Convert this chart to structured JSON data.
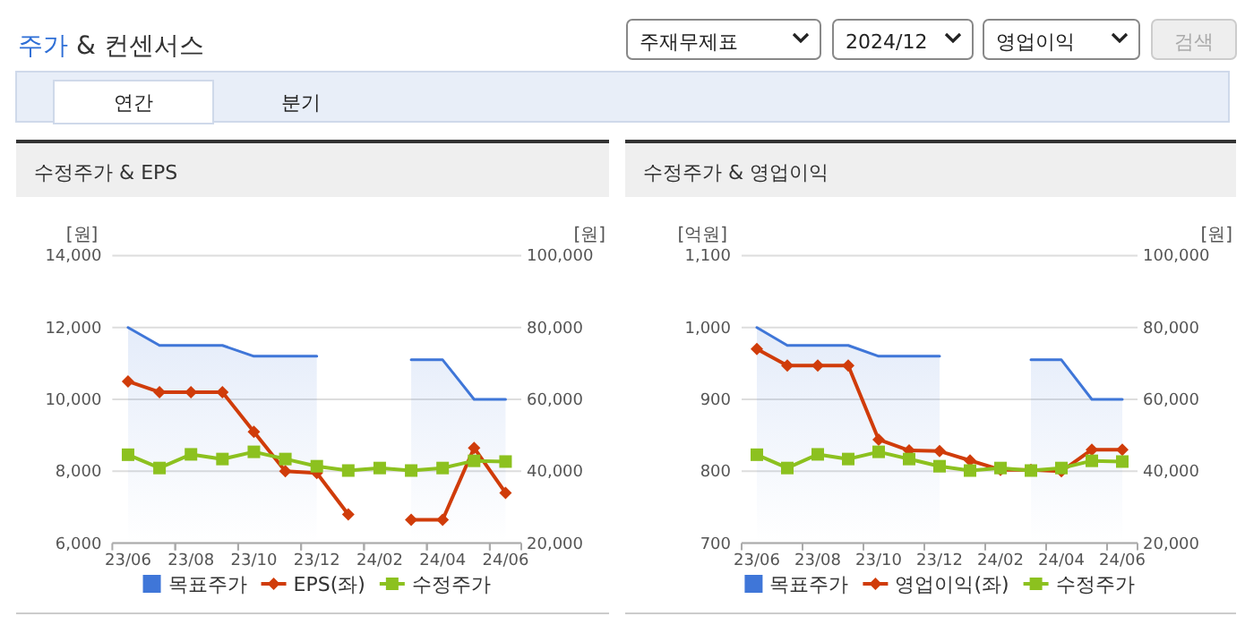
{
  "chart_data": [
    {
      "type": "other",
      "title": "주가 & 컨센서스",
      "annotations": [
        "주재무제표",
        "2024/12",
        "영업이익",
        "검색",
        "연간",
        "분기"
      ]
    },
    {
      "type": "line",
      "title": "수정주가 & EPS",
      "categories": [
        "23/06",
        null,
        "23/08",
        null,
        "23/10",
        null,
        "23/12",
        null,
        "24/02",
        null,
        "24/04",
        null,
        "24/06"
      ],
      "ylabel": "[원]",
      "y2label": "[원]",
      "ylim": [
        6000,
        14000
      ],
      "yticks": [
        {
          "value": 6000,
          "label": "6,000"
        },
        {
          "value": 8000,
          "label": "8,000"
        },
        {
          "value": 10000,
          "label": "10,000"
        },
        {
          "value": 12000,
          "label": "12,000"
        },
        {
          "value": 14000,
          "label": "14,000"
        }
      ],
      "y2lim": [
        20000,
        100000
      ],
      "y2ticks": [
        {
          "value": 20000,
          "label": "20,000"
        },
        {
          "value": 40000,
          "label": "40,000"
        },
        {
          "value": 60000,
          "label": "60,000"
        },
        {
          "value": 80000,
          "label": "80,000"
        },
        {
          "value": 100000,
          "label": "100,000"
        }
      ],
      "grid": "y",
      "legend": "bottom",
      "series": [
        {
          "name": "목표주가",
          "type": "area",
          "axis": "y2",
          "color": "#3f76d8",
          "values": [
            80000,
            75000,
            75000,
            75000,
            72000,
            72000,
            72000,
            null,
            null,
            71000,
            71000,
            60000,
            60000
          ]
        },
        {
          "name": "EPS(좌)",
          "type": "line",
          "marker": "diamond",
          "color": "#d03c0a",
          "values": [
            10500,
            10200,
            10200,
            10200,
            9100,
            8000,
            7950,
            6800,
            null,
            6650,
            6650,
            8650,
            7400
          ]
        },
        {
          "name": "수정주가",
          "type": "line",
          "marker": "square",
          "axis": "y2",
          "color": "#8cc11f",
          "values": [
            44600,
            40900,
            44700,
            43400,
            45400,
            43400,
            41400,
            40200,
            40900,
            40200,
            40900,
            42900,
            42700
          ]
        }
      ]
    },
    {
      "type": "line",
      "title": "수정주가 & 영업이익",
      "categories": [
        "23/06",
        null,
        "23/08",
        null,
        "23/10",
        null,
        "23/12",
        null,
        "24/02",
        null,
        "24/04",
        null,
        "24/06"
      ],
      "ylabel": "[억원]",
      "y2label": "[원]",
      "ylim": [
        700,
        1100
      ],
      "yticks": [
        700,
        800,
        900,
        {
          "value": 1000,
          "label": "1,000"
        },
        {
          "value": 1100,
          "label": "1,100"
        }
      ],
      "y2lim": [
        20000,
        100000
      ],
      "y2ticks": [
        {
          "value": 20000,
          "label": "20,000"
        },
        {
          "value": 40000,
          "label": "40,000"
        },
        {
          "value": 60000,
          "label": "60,000"
        },
        {
          "value": 80000,
          "label": "80,000"
        },
        {
          "value": 100000,
          "label": "100,000"
        }
      ],
      "grid": "y",
      "legend": "bottom",
      "series": [
        {
          "name": "목표주가",
          "type": "area",
          "axis": "y2",
          "color": "#3f76d8",
          "values": [
            80000,
            75000,
            75000,
            75000,
            72000,
            72000,
            72000,
            null,
            null,
            71000,
            71000,
            60000,
            60000
          ]
        },
        {
          "name": "영업이익(좌)",
          "type": "line",
          "marker": "diamond",
          "color": "#d03c0a",
          "values": [
            970,
            947,
            947,
            947,
            844,
            829,
            828,
            815,
            802,
            802,
            800,
            830,
            830
          ]
        },
        {
          "name": "수정주가",
          "type": "line",
          "marker": "square",
          "axis": "y2",
          "color": "#8cc11f",
          "values": [
            44600,
            40900,
            44700,
            43400,
            45400,
            43400,
            41400,
            40200,
            40900,
            40200,
            40900,
            42900,
            42700
          ]
        }
      ]
    }
  ]
}
